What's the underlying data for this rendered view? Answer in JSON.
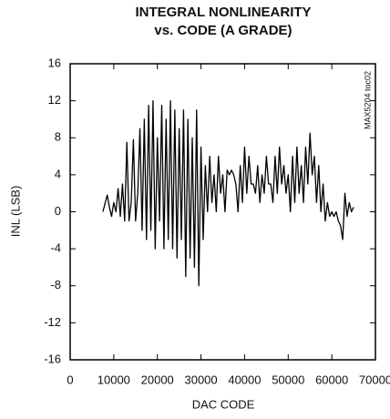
{
  "chart_data": {
    "type": "line",
    "title": [
      "INTEGRAL NONLINEARITY",
      "vs. CODE (A GRADE)"
    ],
    "annotation": "MAX5204 toc02",
    "xlabel": "DAC CODE",
    "ylabel": "INL (LSB)",
    "color": "#000000",
    "x": [
      7500,
      8500,
      9000,
      9500,
      10000,
      10500,
      11000,
      11500,
      12000,
      12500,
      13000,
      13500,
      14000,
      14500,
      15000,
      15500,
      16000,
      16500,
      17000,
      17500,
      18000,
      18500,
      19000,
      19500,
      20000,
      20500,
      21000,
      21500,
      22000,
      22500,
      23000,
      23500,
      24000,
      24500,
      25000,
      25500,
      26000,
      26500,
      27000,
      27500,
      28000,
      28500,
      29000,
      29500,
      30000,
      30500,
      31000,
      31500,
      32000,
      32500,
      33000,
      33500,
      34000,
      34500,
      35000,
      35500,
      36000,
      36500,
      37000,
      37500,
      38000,
      38500,
      39000,
      39500,
      40000,
      40500,
      41000,
      41500,
      42000,
      42500,
      43000,
      43500,
      44000,
      44500,
      45000,
      45500,
      46000,
      46500,
      47000,
      47500,
      48000,
      48500,
      49000,
      49500,
      50000,
      50500,
      51000,
      51500,
      52000,
      52500,
      53000,
      53500,
      54000,
      54500,
      55000,
      55500,
      56000,
      56500,
      57000,
      57500,
      58000,
      58500,
      59000,
      59500,
      60000,
      60500,
      61000,
      61500,
      62000,
      62500,
      63000,
      63500,
      64000,
      64500,
      65000
    ],
    "values": [
      0,
      1.8,
      0.5,
      -0.5,
      1,
      0,
      2.5,
      -0.5,
      3,
      -1,
      7.5,
      -1,
      1,
      7.8,
      -1,
      2,
      9,
      -2,
      10,
      -3,
      11.5,
      -2,
      12,
      -4,
      8,
      -1,
      11.5,
      -4,
      10,
      -3,
      12,
      -4,
      11,
      -5,
      9,
      -3,
      11,
      -7,
      10,
      -5,
      8,
      -6,
      11,
      -8,
      7,
      -3,
      5,
      0,
      6,
      1,
      4,
      0,
      6,
      2,
      4,
      0,
      4.5,
      4,
      4.5,
      4,
      3,
      0,
      5,
      1,
      7,
      2,
      6,
      3,
      3,
      2,
      5,
      1,
      4,
      2,
      6,
      3,
      3,
      1,
      6,
      2,
      7,
      3,
      5,
      2,
      4,
      0,
      6,
      1,
      7,
      2,
      5,
      1,
      7,
      3,
      8.5,
      4,
      6,
      1,
      5,
      0,
      3,
      -1,
      1,
      -0.5,
      0,
      -0.5,
      0,
      -1,
      -1.5,
      -3,
      2,
      -0.5,
      1,
      0,
      0.5
    ],
    "xlim": [
      0,
      70000
    ],
    "ylim": [
      -16,
      16
    ],
    "xticks": [
      0,
      10000,
      20000,
      30000,
      40000,
      50000,
      60000,
      70000
    ],
    "yticks": [
      16,
      12,
      8,
      4,
      0,
      -4,
      -8,
      -12,
      -16
    ],
    "grid": false
  }
}
